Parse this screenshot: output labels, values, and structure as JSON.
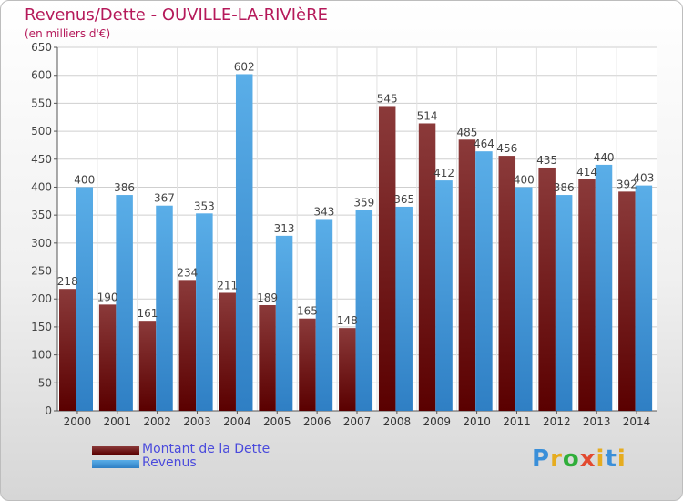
{
  "header": {
    "title": "Revenus/Dette - OUVILLE-LA-RIVIèRE",
    "subtitle": "(en milliers d'€)"
  },
  "legend": {
    "debt_label": "Montant de la Dette",
    "revenue_label": "Revenus"
  },
  "logo": {
    "letters": [
      "P",
      "r",
      "o",
      "x",
      "i",
      "t",
      "i"
    ],
    "colors": [
      "#3a8fd9",
      "#e6ac1f",
      "#2fae3a",
      "#e24a30",
      "#e6ac1f",
      "#3a8fd9",
      "#e6ac1f"
    ]
  },
  "colors": {
    "debt_top": "#8b3a3a",
    "debt_bottom": "#5a0000",
    "revenue_top": "#5aaee8",
    "revenue_bottom": "#2f7fc4",
    "title": "#b5195a"
  },
  "chart_data": {
    "type": "bar",
    "title": "Revenus/Dette - OUVILLE-LA-RIVIèRE",
    "subtitle": "(en milliers d'€)",
    "categories": [
      "2000",
      "2001",
      "2002",
      "2003",
      "2004",
      "2005",
      "2006",
      "2007",
      "2008",
      "2009",
      "2010",
      "2011",
      "2012",
      "2013",
      "2014"
    ],
    "series": [
      {
        "name": "Montant de la Dette",
        "values": [
          218,
          190,
          161,
          234,
          211,
          189,
          165,
          148,
          545,
          514,
          485,
          456,
          435,
          414,
          392
        ]
      },
      {
        "name": "Revenus",
        "values": [
          400,
          386,
          367,
          353,
          602,
          313,
          343,
          359,
          365,
          412,
          464,
          400,
          386,
          440,
          403
        ]
      }
    ],
    "ylim": [
      0,
      650
    ],
    "yticks": [
      0,
      50,
      100,
      150,
      200,
      250,
      300,
      350,
      400,
      450,
      500,
      550,
      600,
      650
    ],
    "grid": true,
    "legend_position": "bottom-left"
  }
}
